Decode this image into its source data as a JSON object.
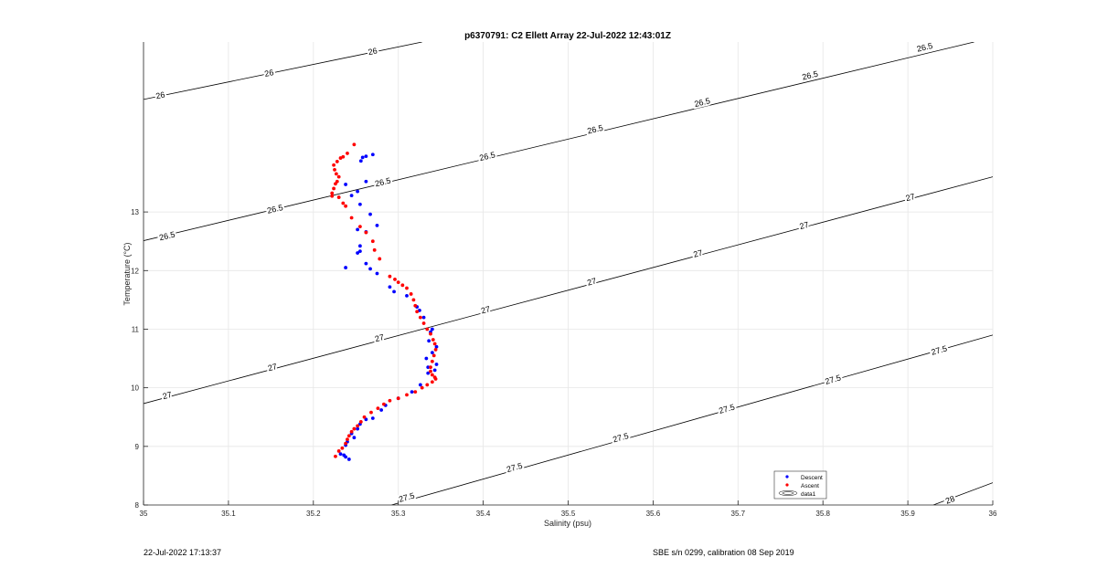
{
  "footer": {
    "left": "22-Jul-2022 17:13:37",
    "right": "SBE s/n 0299, calibration 08 Sep 2019"
  },
  "chart_data": {
    "type": "scatter",
    "title": "p6370791: C2 Ellett Array 22-Jul-2022 12:43:01Z",
    "xlabel": "Salinity (psu)",
    "ylabel": "Temperature (°C)",
    "xlim": [
      35,
      36
    ],
    "ylim": [
      8,
      15.9
    ],
    "x_ticks": [
      "35",
      "35.1",
      "35.2",
      "35.3",
      "35.4",
      "35.5",
      "35.6",
      "35.7",
      "35.8",
      "35.9",
      "36"
    ],
    "y_ticks": [
      "8",
      "9",
      "10",
      "11",
      "12",
      "13"
    ],
    "grid": true,
    "legend": {
      "placement": "bottom-right",
      "entries": [
        "Descent",
        "Ascent",
        "data1"
      ]
    },
    "colors": {
      "Descent": "#0000ff",
      "Ascent": "#ff0000",
      "contour": "#000000",
      "grid": "#e6e6e6"
    },
    "series": [
      {
        "name": "Descent",
        "x": [
          35.27,
          35.262,
          35.258,
          35.256,
          35.262,
          35.252,
          35.238,
          35.245,
          35.255,
          35.267,
          35.275,
          35.252,
          35.262,
          35.255,
          35.238,
          35.252,
          35.255,
          35.262,
          35.267,
          35.275,
          35.29,
          35.295,
          35.31,
          35.322,
          35.325,
          35.33,
          35.34,
          35.338,
          35.336,
          35.345,
          35.34,
          35.333,
          35.345,
          35.335,
          35.343,
          35.335,
          35.326,
          35.316,
          35.3,
          35.285,
          35.28,
          35.27,
          35.262,
          35.255,
          35.252,
          35.245,
          35.248,
          35.24,
          35.238,
          35.232,
          35.236,
          35.238,
          35.242
        ],
        "y": [
          13.98,
          13.95,
          13.93,
          13.87,
          13.52,
          13.35,
          13.47,
          13.28,
          13.13,
          12.96,
          12.77,
          12.7,
          12.66,
          12.42,
          12.05,
          12.3,
          12.33,
          12.12,
          12.03,
          11.95,
          11.72,
          11.64,
          11.57,
          11.38,
          11.32,
          11.2,
          11.0,
          10.95,
          10.8,
          10.7,
          10.6,
          10.5,
          10.4,
          10.35,
          10.3,
          10.25,
          10.05,
          9.93,
          9.82,
          9.7,
          9.62,
          9.48,
          9.46,
          9.38,
          9.3,
          9.22,
          9.15,
          9.08,
          9.02,
          8.87,
          8.85,
          8.82,
          8.78
        ]
      },
      {
        "name": "Ascent",
        "x": [
          35.248,
          35.24,
          35.235,
          35.232,
          35.228,
          35.224,
          35.225,
          35.227,
          35.23,
          35.228,
          35.226,
          35.224,
          35.222,
          35.222,
          35.23,
          35.235,
          35.238,
          35.245,
          35.255,
          35.262,
          35.27,
          35.272,
          35.278,
          35.29,
          35.296,
          35.3,
          35.305,
          35.31,
          35.315,
          35.318,
          35.32,
          35.322,
          35.326,
          35.33,
          35.334,
          35.338,
          35.341,
          35.343,
          35.344,
          35.342,
          35.34,
          35.338,
          35.338,
          35.34,
          35.343,
          35.344,
          35.34,
          35.334,
          35.328,
          35.32,
          35.31,
          35.3,
          35.29,
          35.283,
          35.276,
          35.268,
          35.26,
          35.256,
          35.252,
          35.248,
          35.245,
          35.242,
          35.24,
          35.238,
          35.234,
          35.23,
          35.226
        ],
        "y": [
          14.15,
          14.0,
          13.94,
          13.92,
          13.86,
          13.8,
          13.72,
          13.65,
          13.6,
          13.52,
          13.48,
          13.4,
          13.32,
          13.27,
          13.25,
          13.15,
          13.1,
          12.9,
          12.75,
          12.65,
          12.5,
          12.35,
          12.2,
          11.9,
          11.85,
          11.8,
          11.75,
          11.7,
          11.6,
          11.5,
          11.4,
          11.3,
          11.2,
          11.1,
          11.0,
          10.92,
          10.82,
          10.75,
          10.65,
          10.55,
          10.45,
          10.35,
          10.28,
          10.22,
          10.18,
          10.15,
          10.1,
          10.05,
          10.0,
          9.93,
          9.88,
          9.82,
          9.78,
          9.72,
          9.65,
          9.58,
          9.5,
          9.42,
          9.35,
          9.3,
          9.25,
          9.18,
          9.12,
          9.05,
          8.97,
          8.92,
          8.83
        ]
      }
    ],
    "contours": [
      {
        "level": 26,
        "points": [
          [
            35.0,
            14.92
          ],
          [
            35.328,
            15.9
          ]
        ],
        "labels": [
          [
            35.02,
            14.98,
            "26"
          ],
          [
            35.148,
            15.36,
            "26"
          ],
          [
            35.27,
            15.73,
            "26"
          ]
        ]
      },
      {
        "level": 26.5,
        "points": [
          [
            35.0,
            12.51
          ],
          [
            35.978,
            15.9
          ]
        ],
        "labels": [
          [
            35.028,
            12.58,
            "26.5"
          ],
          [
            35.155,
            13.04,
            "26.5"
          ],
          [
            35.282,
            13.5,
            "26.5"
          ],
          [
            35.405,
            13.94,
            "26.5"
          ],
          [
            35.532,
            14.4,
            "26.5"
          ],
          [
            35.658,
            14.86,
            "26.5"
          ],
          [
            35.785,
            15.32,
            "26.5"
          ],
          [
            35.92,
            15.8,
            "26.5"
          ]
        ]
      },
      {
        "level": 27,
        "points": [
          [
            35.0,
            9.73
          ],
          [
            36.0,
            13.6
          ]
        ],
        "labels": [
          [
            35.028,
            9.86,
            "27"
          ],
          [
            35.152,
            10.34,
            "27"
          ],
          [
            35.278,
            10.84,
            "27"
          ],
          [
            35.403,
            11.32,
            "27"
          ],
          [
            35.528,
            11.8,
            "27"
          ],
          [
            35.653,
            12.28,
            "27"
          ],
          [
            35.778,
            12.76,
            "27"
          ],
          [
            35.903,
            13.24,
            "27"
          ]
        ]
      },
      {
        "level": 27.5,
        "points": [
          [
            35.292,
            8.0
          ],
          [
            36.0,
            10.9
          ]
        ],
        "labels": [
          [
            35.31,
            8.12,
            "27.5"
          ],
          [
            35.437,
            8.63,
            "27.5"
          ],
          [
            35.562,
            9.14,
            "27.5"
          ],
          [
            35.687,
            9.63,
            "27.5"
          ],
          [
            35.812,
            10.13,
            "27.5"
          ],
          [
            35.937,
            10.63,
            "27.5"
          ]
        ]
      },
      {
        "level": 28,
        "points": [
          [
            35.93,
            8.0
          ],
          [
            36.0,
            8.38
          ]
        ],
        "labels": [
          [
            35.95,
            8.08,
            "28"
          ]
        ]
      }
    ]
  }
}
